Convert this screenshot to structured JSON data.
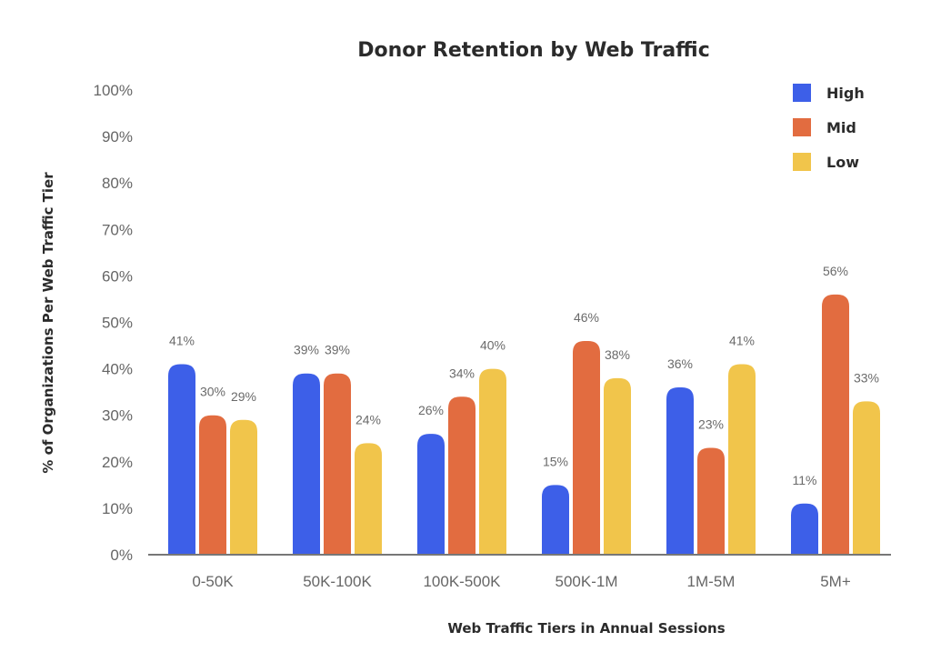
{
  "chart_data": {
    "type": "bar",
    "title": "Donor Retention by Web Traffic",
    "xlabel": "Web Traffic Tiers in Annual Sessions",
    "ylabel": "% of Organizations Per Web Traffic Tier",
    "categories": [
      "0-50K",
      "50K-100K",
      "100K-500K",
      "500K-1M",
      "1M-5M",
      "5M+"
    ],
    "series": [
      {
        "name": "High",
        "color": "#3d5fe8",
        "values": [
          41,
          39,
          26,
          15,
          36,
          11
        ],
        "labels": [
          "41%",
          "39%",
          "26%",
          "15%",
          "36%",
          "11%"
        ]
      },
      {
        "name": "Mid",
        "color": "#e26c40",
        "values": [
          30,
          39,
          34,
          46,
          23,
          56
        ],
        "labels": [
          "30%",
          "39%",
          "34%",
          "46%",
          "23%",
          "56%"
        ]
      },
      {
        "name": "Low",
        "color": "#f1c54b",
        "values": [
          29,
          24,
          40,
          38,
          41,
          33
        ],
        "labels": [
          "29%",
          "24%",
          "40%",
          "38%",
          "41%",
          "33%"
        ]
      }
    ],
    "ylim": [
      0,
      100
    ],
    "yticks": [
      "0%",
      "10%",
      "20%",
      "30%",
      "40%",
      "50%",
      "60%",
      "70%",
      "80%",
      "90%",
      "100%"
    ],
    "grid": false,
    "legend_position": "top-right"
  }
}
